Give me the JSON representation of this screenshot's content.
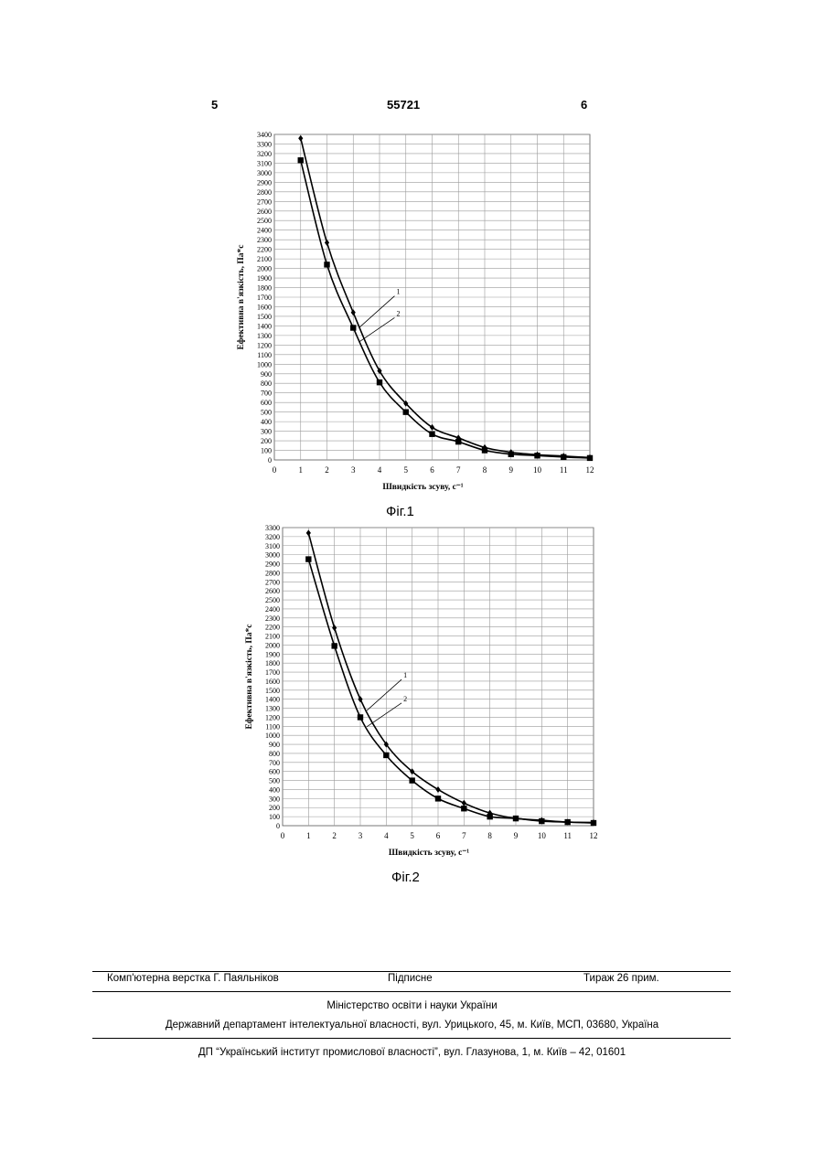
{
  "header": {
    "left_page": "5",
    "patent_number": "55721",
    "right_page": "6"
  },
  "figure1": {
    "caption": "Фіг.1",
    "ylabel": "Ефективна в'язкість, Па*с",
    "xlabel": "Швидкість зсуву, с⁻¹",
    "chart_data": {
      "type": "line",
      "x": [
        1,
        2,
        3,
        4,
        5,
        6,
        7,
        8,
        9,
        10,
        11,
        12
      ],
      "xlim": [
        0,
        12
      ],
      "ylim": [
        0,
        3400
      ],
      "ystep": 100,
      "series": [
        {
          "name": "1",
          "marker": "diamond",
          "values": [
            3360,
            2270,
            1540,
            930,
            590,
            340,
            230,
            130,
            80,
            55,
            40,
            25
          ]
        },
        {
          "name": "2",
          "marker": "square",
          "values": [
            3130,
            2040,
            1380,
            810,
            500,
            270,
            190,
            100,
            60,
            45,
            30,
            20
          ]
        }
      ]
    }
  },
  "figure2": {
    "caption": "Фіг.2",
    "ylabel": "Ефективна в'язкість, Па*с",
    "xlabel": "Швидкість зсуву, с⁻¹",
    "chart_data": {
      "type": "line",
      "x": [
        1,
        2,
        3,
        4,
        5,
        6,
        7,
        8,
        9,
        10,
        11,
        12
      ],
      "xlim": [
        0,
        12
      ],
      "ylim": [
        0,
        3300
      ],
      "ystep": 100,
      "series": [
        {
          "name": "1",
          "marker": "diamond",
          "values": [
            3240,
            2190,
            1400,
            900,
            600,
            400,
            250,
            140,
            80,
            60,
            40,
            35
          ]
        },
        {
          "name": "2",
          "marker": "square",
          "values": [
            2950,
            1990,
            1200,
            780,
            500,
            300,
            190,
            100,
            80,
            50,
            40,
            30
          ]
        }
      ]
    }
  },
  "footer": {
    "layout": "Комп'ютерна верстка Г. Паяльніков",
    "signed": "Підписне",
    "circulation": "Тираж 26 прим.",
    "ministry": "Міністерство освіти і науки України",
    "department": "Державний департамент інтелектуальної власності, вул. Урицького, 45, м. Київ, МСП, 03680, Україна",
    "institute": "ДП “Український інститут промислової власності”, вул. Глазунова, 1, м. Київ – 42, 01601"
  }
}
